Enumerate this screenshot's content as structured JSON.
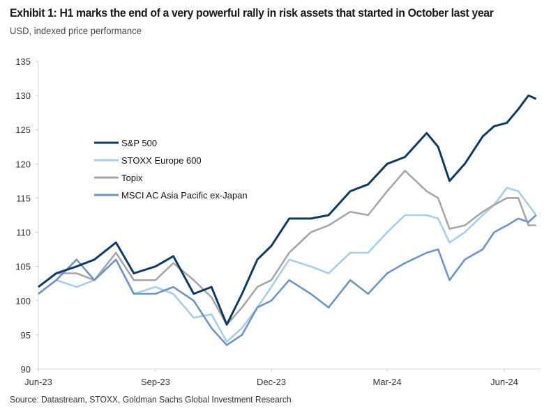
{
  "title": "Exhibit 1: H1 marks the end of a very powerful rally in risk assets that started in October last year",
  "subtitle": "USD, indexed price performance",
  "source": "Source: Datastream, STOXX, Goldman Sachs Global Investment Research",
  "chart_data": {
    "type": "line",
    "title": "Exhibit 1: H1 marks the end of a very powerful rally in risk assets that started in October last year",
    "ylabel": "",
    "xlabel": "",
    "ylim": [
      90,
      135
    ],
    "yticks": [
      "90",
      "95",
      "100",
      "105",
      "110",
      "115",
      "120",
      "125",
      "130",
      "135"
    ],
    "xticks": [
      {
        "label": "Jun-23",
        "date": "2023-06-01"
      },
      {
        "label": "Sep-23",
        "date": "2023-09-01"
      },
      {
        "label": "Dec-23",
        "date": "2023-12-01"
      },
      {
        "label": "Mar-24",
        "date": "2024-03-01"
      },
      {
        "label": "Jun-24",
        "date": "2024-06-01"
      }
    ],
    "grid": false,
    "legend_position": "upper-left",
    "x": [
      "2023-06-01",
      "2023-06-15",
      "2023-07-01",
      "2023-07-15",
      "2023-08-01",
      "2023-08-15",
      "2023-09-01",
      "2023-09-15",
      "2023-10-01",
      "2023-10-15",
      "2023-10-27",
      "2023-11-08",
      "2023-11-20",
      "2023-12-01",
      "2023-12-15",
      "2024-01-01",
      "2024-01-15",
      "2024-02-01",
      "2024-02-15",
      "2024-03-01",
      "2024-03-15",
      "2024-04-01",
      "2024-04-10",
      "2024-04-19",
      "2024-05-01",
      "2024-05-15",
      "2024-05-24",
      "2024-06-03",
      "2024-06-12",
      "2024-06-20",
      "2024-06-26"
    ],
    "series": [
      {
        "name": "S&P 500",
        "color": "#0f3a64",
        "values": [
          102,
          104,
          105,
          106,
          108.5,
          104,
          105,
          106.5,
          101,
          102,
          96.5,
          101,
          106,
          108,
          112,
          112,
          112.5,
          116,
          117,
          120,
          121,
          124.5,
          122.5,
          117.5,
          120,
          124,
          125.5,
          126,
          128,
          130,
          129.5
        ]
      },
      {
        "name": "STOXX Europe 600",
        "color": "#a8cdea",
        "values": [
          101,
          103,
          102,
          103,
          106,
          101,
          102,
          101,
          97.5,
          98,
          94,
          96,
          99,
          102,
          106,
          105,
          104,
          107,
          107,
          110,
          112.5,
          112.5,
          112,
          108.5,
          110,
          112.5,
          114,
          116.5,
          116,
          114,
          112.5
        ]
      },
      {
        "name": "Topix",
        "color": "#a6a6a6",
        "values": [
          102,
          104,
          104,
          103,
          107,
          103,
          103,
          105.5,
          103,
          100.5,
          96.5,
          99,
          102,
          103,
          107,
          110,
          111,
          113,
          112.5,
          116,
          119,
          116,
          115,
          110.5,
          111,
          113,
          114,
          115,
          115,
          111,
          111
        ]
      },
      {
        "name": "MSCI AC Asia Pacific ex-Japan",
        "color": "#6e93c6",
        "values": [
          101,
          103,
          106,
          103,
          106,
          101,
          101,
          102,
          100,
          96,
          93.5,
          95,
          99,
          100,
          103,
          101,
          99,
          103,
          101,
          104,
          105.5,
          107,
          107.5,
          103,
          106,
          107.5,
          110,
          111,
          112,
          111.5,
          112.5
        ]
      }
    ]
  }
}
